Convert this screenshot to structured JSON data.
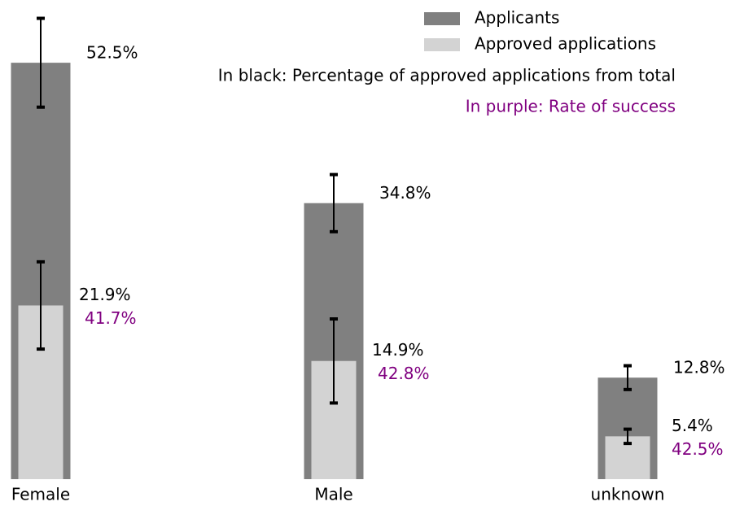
{
  "chart_data": {
    "type": "bar",
    "categories": [
      "Female",
      "Male",
      "unknown"
    ],
    "series": [
      {
        "name": "Applicants",
        "color": "#808080",
        "values": [
          52.5,
          34.8,
          12.8
        ],
        "errors": [
          5.6,
          3.6,
          1.5
        ],
        "value_labels": [
          "52.5%",
          "34.8%",
          "12.8%"
        ]
      },
      {
        "name": "Approved applications",
        "color": "#d3d3d3",
        "values": [
          21.9,
          14.9,
          5.4
        ],
        "errors": [
          5.5,
          5.3,
          0.9
        ],
        "value_labels": [
          "21.9%",
          "14.9%",
          "5.4%"
        ]
      }
    ],
    "success_rate": {
      "color": "#800080",
      "values": [
        41.7,
        42.8,
        42.5
      ],
      "value_labels": [
        "41.7%",
        "42.8%",
        "42.5%"
      ]
    },
    "annotations": [
      "In black: Percentage of approved applications from total",
      "In purple: Rate of success"
    ],
    "ylim": [
      0,
      60
    ],
    "legend": "upper right"
  }
}
